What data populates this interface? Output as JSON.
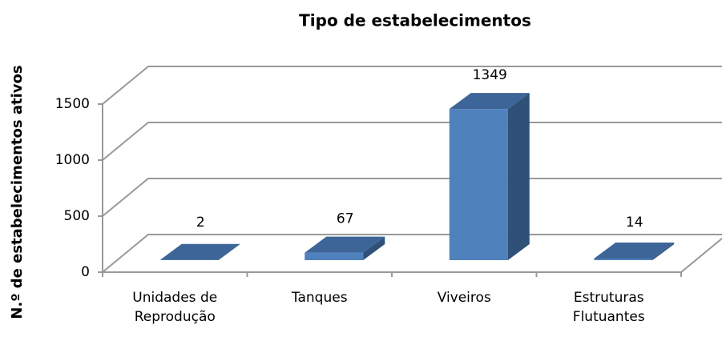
{
  "chart_data": {
    "type": "bar3d",
    "title": "Tipo de estabelecimentos",
    "y_label": "N.º de estabelecimentos ativos",
    "categories": [
      "Unidades de Reprodução",
      "Tanques",
      "Viveiros",
      "Estruturas Flutuantes"
    ],
    "values": [
      2,
      67,
      1349,
      14
    ],
    "color": "#4f81bd",
    "ylim": [
      0,
      1500
    ],
    "yticks": [
      0,
      500,
      1000,
      1500
    ],
    "grid": true
  }
}
